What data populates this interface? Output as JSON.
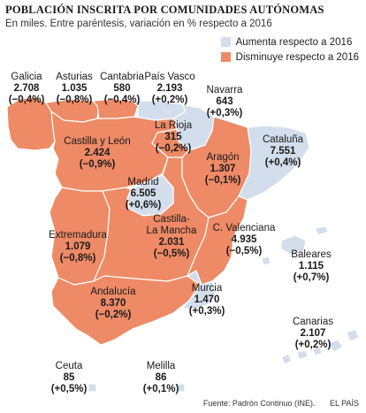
{
  "title": "POBLACIÓN INSCRITA POR COMUNIDADES AUTÓNOMAS",
  "subtitle": "En miles. Entre paréntesis, variación en % respecto a 2016",
  "legend": {
    "increase": "Aumenta respecto a 2016",
    "decrease": "Disminuye respecto a 2016"
  },
  "colors": {
    "increase": "#d3deec",
    "decrease": "#ee8a66",
    "border": "#ffffff"
  },
  "regions": [
    {
      "id": "galicia",
      "name": "Galicia",
      "value": "2.708",
      "change": "(−0,4%)",
      "trend": "decrease"
    },
    {
      "id": "asturias",
      "name": "Asturias",
      "value": "1.035",
      "change": "(−0,8%)",
      "trend": "decrease"
    },
    {
      "id": "cantabria",
      "name": "Cantabria",
      "value": "580",
      "change": "(−0,4%)",
      "trend": "decrease"
    },
    {
      "id": "pais-vasco",
      "name": "País Vasco",
      "value": "2.193",
      "change": "(+0,2%)",
      "trend": "increase"
    },
    {
      "id": "navarra",
      "name": "Navarra",
      "value": "643",
      "change": "(+0,3%)",
      "trend": "increase"
    },
    {
      "id": "castilla-leon",
      "name": "Castilla y León",
      "value": "2.424",
      "change": "(−0,9%)",
      "trend": "decrease"
    },
    {
      "id": "la-rioja",
      "name": "La Rioja",
      "value": "315",
      "change": "(−0,2%)",
      "trend": "decrease"
    },
    {
      "id": "aragon",
      "name": "Aragón",
      "value": "1.307",
      "change": "(−0,1%)",
      "trend": "decrease"
    },
    {
      "id": "cataluna",
      "name": "Cataluña",
      "value": "7.551",
      "change": "(+0,4%)",
      "trend": "increase"
    },
    {
      "id": "madrid",
      "name": "Madrid",
      "value": "6.505",
      "change": "(+0,6%)",
      "trend": "increase"
    },
    {
      "id": "extremadura",
      "name": "Extremadura",
      "value": "1.079",
      "change": "(−0,8%)",
      "trend": "decrease"
    },
    {
      "id": "castilla-la-mancha",
      "name": "Castilla-\nLa Mancha",
      "value": "2.031",
      "change": "(−0,5%)",
      "trend": "decrease"
    },
    {
      "id": "c-valenciana",
      "name": "C. Valenciana",
      "value": "4.935",
      "change": "(−0,5%)",
      "trend": "decrease"
    },
    {
      "id": "baleares",
      "name": "Baleares",
      "value": "1.115",
      "change": "(+0,7%)",
      "trend": "increase"
    },
    {
      "id": "andalucia",
      "name": "Andalucía",
      "value": "8.370",
      "change": "(−0,2%)",
      "trend": "decrease"
    },
    {
      "id": "murcia",
      "name": "Murcia",
      "value": "1.470",
      "change": "(+0,3%)",
      "trend": "increase"
    },
    {
      "id": "canarias",
      "name": "Canarias",
      "value": "2.107",
      "change": "(+0,2%)",
      "trend": "increase"
    },
    {
      "id": "ceuta",
      "name": "Ceuta",
      "value": "85",
      "change": "(+0,5%)",
      "trend": "increase"
    },
    {
      "id": "melilla",
      "name": "Melilla",
      "value": "86",
      "change": "(+0,1%)",
      "trend": "increase"
    }
  ],
  "source": "Fuente: Padrón Continuo (INE).",
  "publisher": "EL PAÍS"
}
